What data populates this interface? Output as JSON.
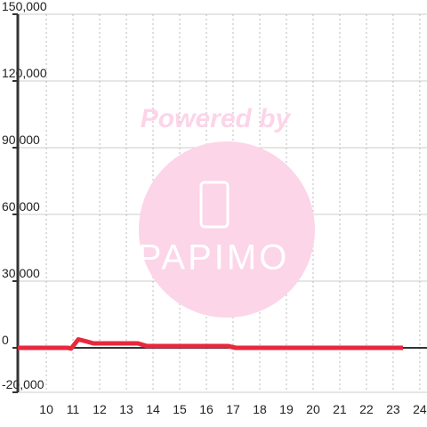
{
  "chart_data": {
    "type": "line",
    "watermark": {
      "title": "Powered by",
      "brand": "PAPIMO"
    },
    "x": [
      8.93,
      10.8,
      10.93,
      11.2,
      11.4,
      11.77,
      13.43,
      13.77,
      16.8,
      17.1,
      23.37
    ],
    "series": [
      {
        "color": "#e8283c",
        "values": [
          0,
          0,
          -300,
          3800,
          3200,
          2000,
          2000,
          800,
          800,
          0,
          0
        ]
      }
    ],
    "xlim": [
      8.93,
      24.27
    ],
    "xticks": [
      10,
      11,
      12,
      13,
      14,
      15,
      16,
      17,
      18,
      19,
      20,
      21,
      22,
      23,
      24
    ],
    "ylim": [
      -20000,
      150000
    ],
    "yticks": [
      {
        "value": -20000,
        "label": "-20,000"
      },
      0,
      {
        "value": 30000,
        "label": "30,000"
      },
      {
        "value": 60000,
        "label": "60,000"
      },
      {
        "value": 90000,
        "label": "90,000"
      },
      {
        "value": 120000,
        "label": "120,000"
      },
      {
        "value": 150000,
        "label": "150,000"
      }
    ],
    "grid": true
  }
}
